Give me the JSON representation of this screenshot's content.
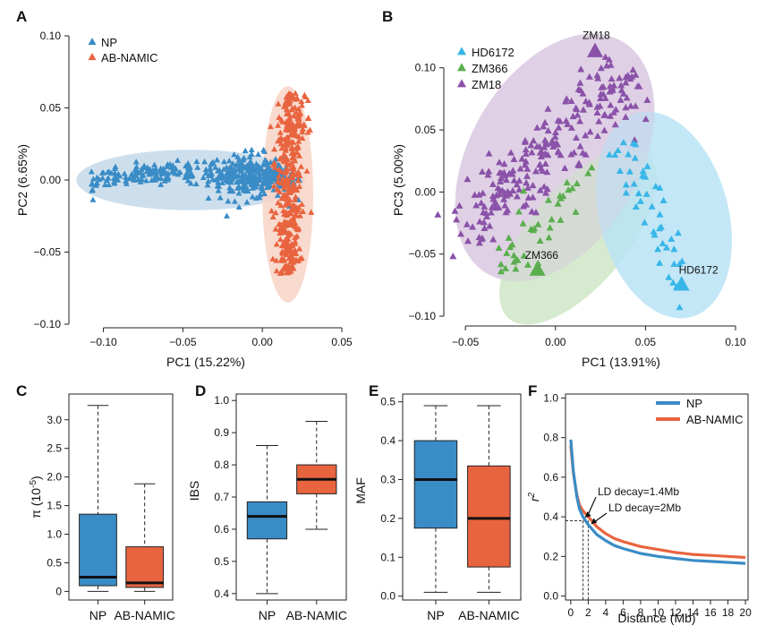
{
  "colors": {
    "np": "#3a8cc6",
    "ab": "#e8643f",
    "hd": "#38b6e8",
    "zm366": "#5aae4e",
    "zm18": "#8a52a8",
    "ellipse_np": "#c4d9ea",
    "ellipse_ab": "#f8d4c6",
    "ellipse_hd": "#b9e3f5",
    "ellipse_zm366": "#cfe6c8",
    "ellipse_zm18": "#dccbe2"
  },
  "chart_data": [
    {
      "id": "A",
      "letter": "A",
      "type": "scatter",
      "xlabel": "PC1 (15.22%)",
      "ylabel": "PC2 (6.65%)",
      "xlim": [
        -0.12,
        0.05
      ],
      "ylim": [
        -0.1,
        0.1
      ],
      "xticks": [
        "−0.10",
        "−0.05",
        "0.00",
        "0.05"
      ],
      "xtick_values": [
        -0.1,
        -0.05,
        0.0,
        0.05
      ],
      "yticks": [
        "−0.10",
        "−0.05",
        "0.00",
        "0.05",
        "0.10"
      ],
      "ytick_values": [
        -0.1,
        -0.05,
        0.0,
        0.05,
        0.1
      ],
      "legend": [
        "NP",
        "AB-NAMIC"
      ],
      "series": [
        {
          "name": "NP",
          "approx_points": 420,
          "center": [
            -0.04,
            0.005
          ],
          "spread": [
            0.045,
            0.006
          ]
        },
        {
          "name": "AB-NAMIC",
          "approx_points": 380,
          "center": [
            0.017,
            -0.01
          ],
          "spread": [
            0.006,
            0.035
          ]
        }
      ],
      "ellipses": [
        {
          "series": "NP",
          "center": [
            -0.045,
            0.0
          ],
          "semi_axes": [
            0.072,
            0.021
          ]
        },
        {
          "series": "AB-NAMIC",
          "center": [
            0.016,
            -0.01
          ],
          "semi_axes": [
            0.016,
            0.075
          ]
        }
      ]
    },
    {
      "id": "B",
      "letter": "B",
      "type": "scatter",
      "xlabel": "PC1 (13.91%)",
      "ylabel": "PC3 (5.00%)",
      "xlim": [
        -0.06,
        0.1
      ],
      "ylim": [
        -0.105,
        0.12
      ],
      "xticks": [
        "−0.05",
        "0.00",
        "0.05",
        "0.10"
      ],
      "xtick_values": [
        -0.05,
        0.0,
        0.05,
        0.1
      ],
      "yticks": [
        "−0.10",
        "−0.05",
        "0.00",
        "0.05",
        "0.10"
      ],
      "ytick_values": [
        -0.1,
        -0.05,
        0.0,
        0.05,
        0.1
      ],
      "legend": [
        "HD6172",
        "ZM366",
        "ZM18"
      ],
      "series": [
        {
          "name": "HD6172",
          "approx_points": 45,
          "highlight": [
            0.07,
            -0.075
          ],
          "highlight_label": "HD6172"
        },
        {
          "name": "ZM366",
          "approx_points": 40,
          "highlight": [
            -0.01,
            -0.063
          ],
          "highlight_label": "ZM366"
        },
        {
          "name": "ZM18",
          "approx_points": 260,
          "highlight": [
            0.022,
            0.113
          ],
          "highlight_label": "ZM18"
        }
      ]
    },
    {
      "id": "C",
      "letter": "C",
      "type": "boxplot",
      "ylabel": "π (10⁻⁵)",
      "ylabel_main": "π (10",
      "ylabel_sup": "-5",
      "ylabel_close": ")",
      "ylim": [
        -0.15,
        3.45
      ],
      "yticks": [
        "0",
        "0.5",
        "1.0",
        "1.5",
        "2.0",
        "2.5",
        "3.0"
      ],
      "ytick_values": [
        0,
        0.5,
        1.0,
        1.5,
        2.0,
        2.5,
        3.0
      ],
      "categories": [
        "NP",
        "AB-NAMIC"
      ],
      "boxes": [
        {
          "name": "NP",
          "min": 0.0,
          "q1": 0.1,
          "median": 0.25,
          "q3": 1.35,
          "max": 3.25
        },
        {
          "name": "AB-NAMIC",
          "min": 0.0,
          "q1": 0.07,
          "median": 0.15,
          "q3": 0.78,
          "max": 1.88
        }
      ]
    },
    {
      "id": "D",
      "letter": "D",
      "type": "boxplot",
      "ylabel": "IBS",
      "ylim": [
        0.38,
        1.02
      ],
      "yticks": [
        "0.4",
        "0.5",
        "0.6",
        "0.7",
        "0.8",
        "0.9",
        "1.0"
      ],
      "ytick_values": [
        0.4,
        0.5,
        0.6,
        0.7,
        0.8,
        0.9,
        1.0
      ],
      "categories": [
        "NP",
        "AB-NAMIC"
      ],
      "boxes": [
        {
          "name": "NP",
          "min": 0.4,
          "q1": 0.57,
          "median": 0.64,
          "q3": 0.685,
          "max": 0.86
        },
        {
          "name": "AB-NAMIC",
          "min": 0.6,
          "q1": 0.71,
          "median": 0.755,
          "q3": 0.8,
          "max": 0.935
        }
      ]
    },
    {
      "id": "E",
      "letter": "E",
      "type": "boxplot",
      "ylabel": "MAF",
      "ylim": [
        -0.01,
        0.52
      ],
      "yticks": [
        "0.0",
        "0.1",
        "0.2",
        "0.3",
        "0.4",
        "0.5"
      ],
      "ytick_values": [
        0.0,
        0.1,
        0.2,
        0.3,
        0.4,
        0.5
      ],
      "categories": [
        "NP",
        "AB-NAMIC"
      ],
      "boxes": [
        {
          "name": "NP",
          "min": 0.01,
          "q1": 0.175,
          "median": 0.3,
          "q3": 0.4,
          "max": 0.49
        },
        {
          "name": "AB-NAMIC",
          "min": 0.01,
          "q1": 0.075,
          "median": 0.2,
          "q3": 0.335,
          "max": 0.49
        }
      ]
    },
    {
      "id": "F",
      "letter": "F",
      "type": "line",
      "xlabel": "Distance (Mb)",
      "ylabel": "r²",
      "ylabel_main": "r",
      "ylabel_sup": "2",
      "xlim": [
        -0.6,
        20.3
      ],
      "ylim": [
        -0.02,
        1.02
      ],
      "xticks": [
        "0",
        "2",
        "4",
        "6",
        "8",
        "10",
        "12",
        "14",
        "16",
        "18",
        "20"
      ],
      "xtick_values": [
        0,
        2,
        4,
        6,
        8,
        10,
        12,
        14,
        16,
        18,
        20
      ],
      "yticks": [
        "0.0",
        "0.2",
        "0.4",
        "0.6",
        "0.8",
        "1.0"
      ],
      "ytick_values": [
        0.0,
        0.2,
        0.4,
        0.6,
        0.8,
        1.0
      ],
      "legend": [
        "NP",
        "AB-NAMIC"
      ],
      "series": [
        {
          "name": "NP",
          "x": [
            0,
            0.3,
            0.7,
            1.0,
            1.4,
            2,
            3,
            4,
            5,
            6,
            8,
            10,
            12,
            14,
            16,
            18,
            20
          ],
          "values": [
            0.79,
            0.63,
            0.5,
            0.44,
            0.4,
            0.36,
            0.31,
            0.28,
            0.255,
            0.24,
            0.215,
            0.2,
            0.19,
            0.18,
            0.175,
            0.17,
            0.165
          ]
        },
        {
          "name": "AB-NAMIC",
          "x": [
            0,
            0.3,
            0.7,
            1.0,
            1.4,
            2,
            3,
            4,
            5,
            6,
            8,
            10,
            12,
            14,
            16,
            18,
            20
          ],
          "values": [
            0.76,
            0.62,
            0.51,
            0.46,
            0.43,
            0.4,
            0.35,
            0.315,
            0.29,
            0.275,
            0.25,
            0.235,
            0.22,
            0.21,
            0.205,
            0.2,
            0.195
          ]
        }
      ],
      "decay_threshold": 0.38,
      "annotations": [
        {
          "text": "LD decay=1.4Mb",
          "x": 1.4
        },
        {
          "text": "LD decay=2Mb",
          "x": 2.0
        }
      ]
    }
  ]
}
